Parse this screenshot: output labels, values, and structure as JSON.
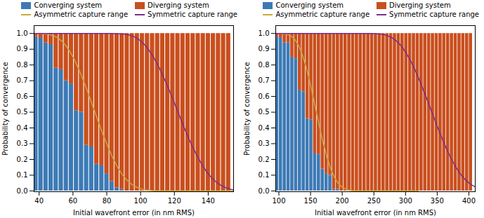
{
  "chart_data": [
    {
      "type": "bar",
      "stacked": true,
      "legend": "upper right",
      "xlabel": "Initial wavefront error (in nm RMS)",
      "ylabel": "Probability of convergence",
      "xlim": [
        37,
        155
      ],
      "xticks": [
        40,
        60,
        80,
        100,
        120,
        140
      ],
      "ylim": [
        -0.005,
        1.05
      ],
      "yticks": [
        {
          "value": 0,
          "label": "0.0"
        },
        0.1,
        0.2,
        0.3,
        0.4,
        0.5,
        0.6,
        0.7,
        0.8,
        0.9,
        {
          "value": 1.0,
          "label": "1.0"
        }
      ],
      "series": [
        {
          "name": "Converging system",
          "type": "bar",
          "color": "#3d7ab5",
          "x": [
            38,
            41,
            44,
            47,
            50,
            53,
            56,
            59,
            62,
            65,
            68,
            71,
            74,
            77,
            80,
            83,
            86,
            89,
            92,
            95,
            98,
            101,
            104,
            107,
            110,
            113,
            116,
            119,
            122,
            125,
            128,
            131,
            134,
            137,
            140,
            143,
            146,
            149,
            152
          ],
          "values": [
            0.98,
            0.97,
            0.94,
            0.93,
            0.78,
            0.77,
            0.7,
            0.68,
            0.51,
            0.5,
            0.29,
            0.28,
            0.17,
            0.16,
            0.11,
            0.06,
            0.02,
            0.01,
            0.0,
            0.0,
            0.0,
            0.0,
            0.0,
            0.0,
            0.0,
            0.0,
            0.0,
            0.0,
            0.0,
            0.0,
            0.0,
            0.0,
            0.0,
            0.0,
            0.0,
            0.0,
            0.0,
            0.0,
            0.0
          ]
        },
        {
          "name": "Diverging system",
          "type": "bar",
          "color": "#c94f1e",
          "x": [
            38,
            41,
            44,
            47,
            50,
            53,
            56,
            59,
            62,
            65,
            68,
            71,
            74,
            77,
            80,
            83,
            86,
            89,
            92,
            95,
            98,
            101,
            104,
            107,
            110,
            113,
            116,
            119,
            122,
            125,
            128,
            131,
            134,
            137,
            140,
            143,
            146,
            149,
            152
          ],
          "values": [
            0.02,
            0.03,
            0.06,
            0.07,
            0.22,
            0.23,
            0.3,
            0.32,
            0.49,
            0.5,
            0.71,
            0.72,
            0.83,
            0.84,
            0.89,
            0.94,
            0.98,
            0.99,
            1.0,
            1.0,
            1.0,
            1.0,
            1.0,
            1.0,
            1.0,
            1.0,
            1.0,
            1.0,
            1.0,
            1.0,
            1.0,
            1.0,
            1.0,
            1.0,
            1.0,
            1.0,
            1.0,
            1.0,
            1.0
          ]
        },
        {
          "name": "Asymmetric capture range",
          "type": "line",
          "color": "#c8aa3a",
          "x": [
            37,
            39,
            41,
            43,
            45,
            47,
            49,
            51,
            53,
            55,
            57,
            59,
            61,
            63,
            65,
            67,
            69,
            71,
            73,
            75,
            77,
            79,
            81,
            83,
            85,
            87,
            89,
            91,
            93,
            95,
            97,
            99,
            101,
            103,
            105,
            107,
            109,
            111,
            113,
            115,
            117,
            119,
            121,
            123,
            125,
            127,
            129,
            131,
            133,
            135,
            137,
            139,
            141,
            143,
            145,
            147,
            149,
            151,
            153,
            155
          ],
          "values": [
            1.0,
            1.0,
            0.999,
            0.998,
            0.995,
            0.99,
            0.983,
            0.972,
            0.955,
            0.933,
            0.905,
            0.87,
            0.83,
            0.783,
            0.733,
            0.678,
            0.62,
            0.56,
            0.5,
            0.44,
            0.381,
            0.325,
            0.272,
            0.223,
            0.179,
            0.14,
            0.107,
            0.079,
            0.057,
            0.04,
            0.027,
            0.018,
            0.011,
            0.007,
            0.004,
            0.002,
            0.001,
            0.001,
            0.0,
            0.0,
            0.0,
            0.0,
            0.0,
            0.0,
            0.0,
            0.0,
            0.0,
            0.0,
            0.0,
            0.0,
            0.0,
            0.0,
            0.0,
            0.0,
            0.0,
            0.0,
            0.0,
            0.0,
            0.0,
            0.0
          ]
        },
        {
          "name": "Symmetric capture range",
          "type": "line",
          "color": "#7b2d8b",
          "x": [
            37,
            39,
            41,
            43,
            45,
            47,
            49,
            51,
            53,
            55,
            57,
            59,
            61,
            63,
            65,
            67,
            69,
            71,
            73,
            75,
            77,
            79,
            81,
            83,
            85,
            87,
            89,
            91,
            93,
            95,
            97,
            99,
            101,
            103,
            105,
            107,
            109,
            111,
            113,
            115,
            117,
            119,
            121,
            123,
            125,
            127,
            129,
            131,
            133,
            135,
            137,
            139,
            141,
            143,
            145,
            147,
            149,
            151,
            153,
            155
          ],
          "values": [
            1.0,
            1.0,
            1.0,
            1.0,
            1.0,
            1.0,
            1.0,
            1.0,
            1.0,
            1.0,
            1.0,
            1.0,
            1.0,
            1.0,
            1.0,
            1.0,
            1.0,
            1.0,
            1.0,
            1.0,
            1.0,
            1.0,
            1.0,
            1.0,
            0.999,
            0.998,
            0.997,
            0.995,
            0.991,
            0.985,
            0.975,
            0.961,
            0.943,
            0.921,
            0.893,
            0.861,
            0.824,
            0.783,
            0.737,
            0.689,
            0.638,
            0.585,
            0.531,
            0.477,
            0.423,
            0.371,
            0.321,
            0.274,
            0.231,
            0.191,
            0.155,
            0.123,
            0.096,
            0.073,
            0.054,
            0.039,
            0.027,
            0.018,
            0.011,
            0.007
          ]
        }
      ]
    },
    {
      "type": "bar",
      "stacked": true,
      "legend": "upper right",
      "xlabel": "Initial wavefront error (in nm RMS)",
      "ylabel": "Probability of convergence",
      "xlim": [
        95,
        410
      ],
      "xticks": [
        100,
        150,
        200,
        250,
        300,
        350,
        400
      ],
      "ylim": [
        -0.005,
        1.05
      ],
      "yticks": [
        {
          "value": 0,
          "label": "0.0"
        },
        0.1,
        0.2,
        0.3,
        0.4,
        0.5,
        0.6,
        0.7,
        0.8,
        0.9,
        {
          "value": 1.0,
          "label": "1.0"
        }
      ],
      "series": [
        {
          "name": "Converging system",
          "type": "bar",
          "color": "#3d7ab5",
          "x": [
            97,
            103,
            109,
            115,
            121,
            127,
            133,
            139,
            145,
            151,
            157,
            163,
            169,
            175,
            181,
            187,
            193,
            199,
            205,
            211,
            217,
            223,
            229,
            235,
            241,
            247,
            253,
            259,
            265,
            271,
            277,
            283,
            289,
            295,
            301,
            307,
            313,
            319,
            325,
            331,
            337,
            343,
            349,
            355,
            361,
            367,
            373,
            379,
            385,
            391,
            397,
            403
          ],
          "values": [
            0.98,
            0.97,
            0.94,
            0.94,
            0.85,
            0.84,
            0.64,
            0.63,
            0.46,
            0.45,
            0.24,
            0.23,
            0.14,
            0.11,
            0.1,
            0.01,
            0.01,
            0.0,
            0.0,
            0.0,
            0.0,
            0.0,
            0.0,
            0.0,
            0.0,
            0.0,
            0.0,
            0.0,
            0.0,
            0.0,
            0.0,
            0.0,
            0.0,
            0.0,
            0.0,
            0.0,
            0.0,
            0.0,
            0.0,
            0.0,
            0.0,
            0.0,
            0.0,
            0.0,
            0.0,
            0.0,
            0.0,
            0.0,
            0.0,
            0.0,
            0.0,
            0.0
          ]
        },
        {
          "name": "Diverging system",
          "type": "bar",
          "color": "#c94f1e",
          "x": [
            97,
            103,
            109,
            115,
            121,
            127,
            133,
            139,
            145,
            151,
            157,
            163,
            169,
            175,
            181,
            187,
            193,
            199,
            205,
            211,
            217,
            223,
            229,
            235,
            241,
            247,
            253,
            259,
            265,
            271,
            277,
            283,
            289,
            295,
            301,
            307,
            313,
            319,
            325,
            331,
            337,
            343,
            349,
            355,
            361,
            367,
            373,
            379,
            385,
            391,
            397,
            403
          ],
          "values": [
            0.02,
            0.03,
            0.06,
            0.06,
            0.15,
            0.16,
            0.36,
            0.37,
            0.54,
            0.55,
            0.76,
            0.77,
            0.86,
            0.89,
            0.9,
            0.99,
            0.99,
            1.0,
            1.0,
            1.0,
            1.0,
            1.0,
            1.0,
            1.0,
            1.0,
            1.0,
            1.0,
            1.0,
            1.0,
            1.0,
            1.0,
            1.0,
            1.0,
            1.0,
            1.0,
            1.0,
            1.0,
            1.0,
            1.0,
            1.0,
            1.0,
            1.0,
            1.0,
            1.0,
            1.0,
            1.0,
            1.0,
            1.0,
            1.0,
            1.0,
            1.0,
            1.0
          ]
        },
        {
          "name": "Asymmetric capture range",
          "type": "line",
          "color": "#c8aa3a",
          "x": [
            95,
            98,
            101,
            104,
            107,
            110,
            113,
            116,
            119,
            122,
            125,
            128,
            131,
            134,
            137,
            140,
            143,
            146,
            149,
            152,
            155,
            158,
            161,
            164,
            167,
            170,
            173,
            176,
            179,
            182,
            185,
            188,
            191,
            194,
            197,
            200,
            203,
            206,
            209,
            212,
            215,
            218,
            221,
            224,
            227,
            230,
            233,
            236,
            239,
            242,
            245,
            248,
            251,
            254,
            257,
            260,
            263,
            266,
            269,
            272,
            275,
            280,
            285,
            290,
            295,
            300,
            310,
            320
          ],
          "values": [
            1.0,
            1.0,
            1.0,
            0.999,
            0.998,
            0.997,
            0.994,
            0.99,
            0.984,
            0.975,
            0.962,
            0.945,
            0.923,
            0.896,
            0.864,
            0.827,
            0.785,
            0.739,
            0.689,
            0.635,
            0.58,
            0.523,
            0.466,
            0.41,
            0.356,
            0.305,
            0.258,
            0.214,
            0.175,
            0.14,
            0.11,
            0.085,
            0.064,
            0.047,
            0.034,
            0.024,
            0.016,
            0.01,
            0.006,
            0.004,
            0.002,
            0.001,
            0.001,
            0.0,
            0.0,
            0.0,
            0.0,
            0.0,
            0.0,
            0.0,
            0.0,
            0.0,
            0.0,
            0.0,
            0.0,
            0.0,
            0.0,
            0.0,
            0.0,
            0.0,
            0.0,
            0.0,
            0.0,
            0.0,
            0.0,
            0.0,
            0.0,
            0.0
          ]
        },
        {
          "name": "Symmetric capture range",
          "type": "line",
          "color": "#7b2d8b",
          "x": [
            95,
            100,
            105,
            110,
            115,
            120,
            125,
            130,
            135,
            140,
            145,
            150,
            155,
            160,
            165,
            170,
            175,
            180,
            185,
            190,
            195,
            200,
            205,
            210,
            215,
            220,
            225,
            230,
            235,
            240,
            245,
            250,
            255,
            260,
            265,
            270,
            275,
            280,
            285,
            290,
            295,
            300,
            305,
            310,
            315,
            320,
            325,
            330,
            335,
            340,
            345,
            350,
            355,
            360,
            365,
            370,
            375,
            380,
            385,
            390,
            395,
            400,
            405,
            410
          ],
          "values": [
            1.0,
            1.0,
            1.0,
            1.0,
            1.0,
            1.0,
            1.0,
            1.0,
            1.0,
            1.0,
            1.0,
            1.0,
            1.0,
            1.0,
            1.0,
            1.0,
            1.0,
            1.0,
            1.0,
            1.0,
            1.0,
            1.0,
            1.0,
            1.0,
            1.0,
            1.0,
            1.0,
            1.0,
            1.0,
            1.0,
            1.0,
            0.999,
            0.998,
            0.996,
            0.993,
            0.988,
            0.98,
            0.969,
            0.954,
            0.935,
            0.911,
            0.882,
            0.848,
            0.81,
            0.768,
            0.722,
            0.673,
            0.622,
            0.57,
            0.517,
            0.464,
            0.411,
            0.36,
            0.311,
            0.265,
            0.222,
            0.183,
            0.148,
            0.117,
            0.091,
            0.069,
            0.051,
            0.037,
            0.026
          ]
        }
      ]
    }
  ]
}
